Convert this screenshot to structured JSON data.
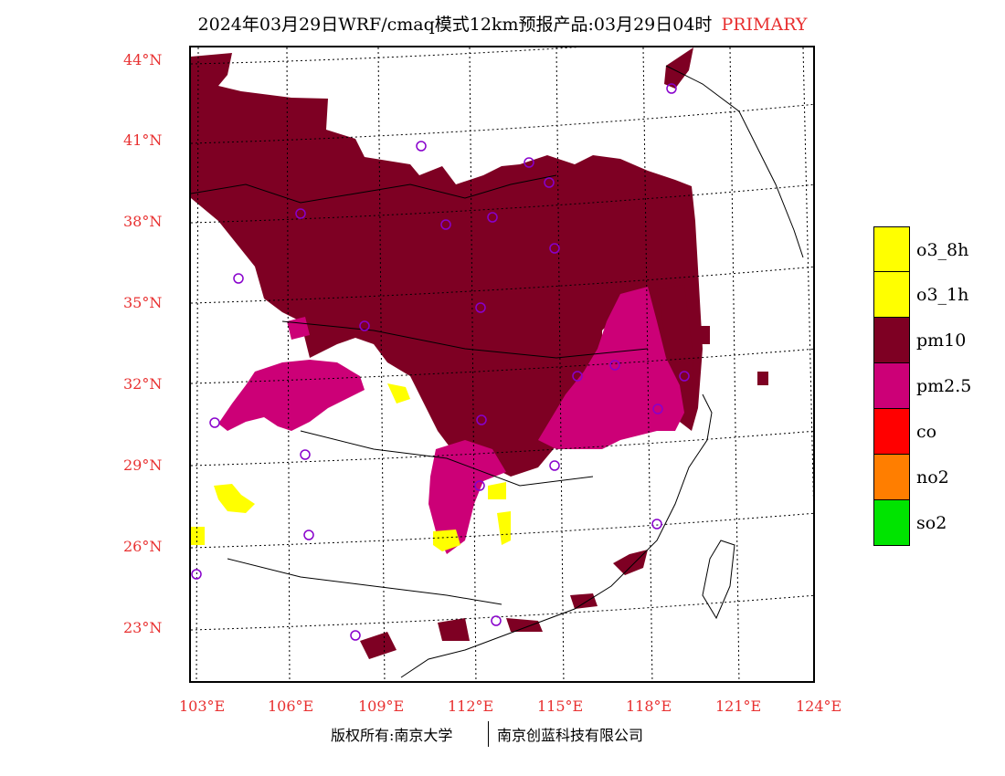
{
  "header": {
    "title": "2024年03月29日WRF/cmaq模式12km预报产品:03月29日04时",
    "tag": "PRIMARY",
    "tag_color": "#e83030"
  },
  "map": {
    "lat_labels": [
      "44°N",
      "41°N",
      "38°N",
      "35°N",
      "32°N",
      "29°N",
      "26°N",
      "23°N"
    ],
    "lon_labels": [
      "103°E",
      "106°E",
      "109°E",
      "112°E",
      "115°E",
      "118°E",
      "121°E",
      "124°E"
    ],
    "extent": {
      "lon": [
        102.8,
        124
      ],
      "lat": [
        21,
        44.5
      ]
    }
  },
  "legend": {
    "items": [
      {
        "label": "o3_8h",
        "color": "#ffff00"
      },
      {
        "label": "o3_1h",
        "color": "#ffff00"
      },
      {
        "label": "pm10",
        "color": "#7e0023"
      },
      {
        "label": "pm2.5",
        "color": "#cc0077"
      },
      {
        "label": "co",
        "color": "#ff0000"
      },
      {
        "label": "no2",
        "color": "#ff7e00"
      },
      {
        "label": "so2",
        "color": "#00e400"
      }
    ]
  },
  "footer": {
    "left": "版权所有:南京大学",
    "right": "南京创蓝科技有限公司"
  }
}
